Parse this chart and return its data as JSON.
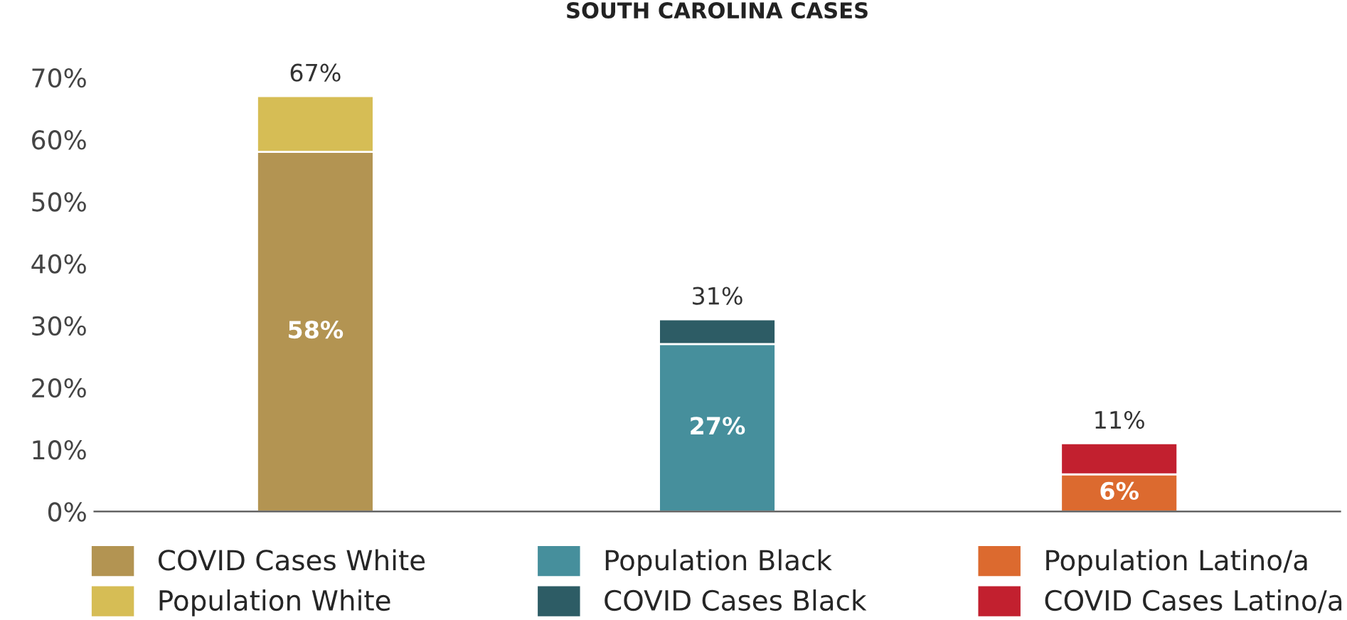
{
  "chart_data": {
    "type": "bar",
    "title": "SOUTH CAROLINA CASES",
    "categories": [
      null,
      null,
      null
    ],
    "stacked": true,
    "series": [
      {
        "name": "COVID Cases White",
        "color": "#b39452",
        "values": [
          58,
          null,
          null
        ],
        "value_labels": [
          "58%",
          null,
          null
        ]
      },
      {
        "name": "Population White",
        "color": "#d6bd55",
        "values": [
          9,
          null,
          null
        ]
      },
      {
        "name": "Population Black",
        "color": "#468f9c",
        "values": [
          null,
          27,
          null
        ],
        "value_labels": [
          null,
          "27%",
          null
        ]
      },
      {
        "name": "COVID Cases Black",
        "color": "#2d5c65",
        "values": [
          null,
          4,
          null
        ]
      },
      {
        "name": "Population Latino/a",
        "color": "#dc6a2f",
        "values": [
          null,
          null,
          6
        ],
        "value_labels": [
          null,
          null,
          "6%"
        ]
      },
      {
        "name": "COVID Cases Latino/a",
        "color": "#c2202f",
        "values": [
          null,
          null,
          5
        ]
      }
    ],
    "totals": [
      "67%",
      "31%",
      "11%"
    ],
    "ylim": [
      0,
      70
    ],
    "yticks": [
      {
        "value": 0,
        "label": "0%"
      },
      {
        "value": 10,
        "label": "10%"
      },
      {
        "value": 20,
        "label": "20%"
      },
      {
        "value": 30,
        "label": "30%"
      },
      {
        "value": 40,
        "label": "40%"
      },
      {
        "value": 50,
        "label": "50%"
      },
      {
        "value": 60,
        "label": "60%"
      },
      {
        "value": 70,
        "label": "70%"
      }
    ],
    "grid": false,
    "legend": "bottom"
  }
}
